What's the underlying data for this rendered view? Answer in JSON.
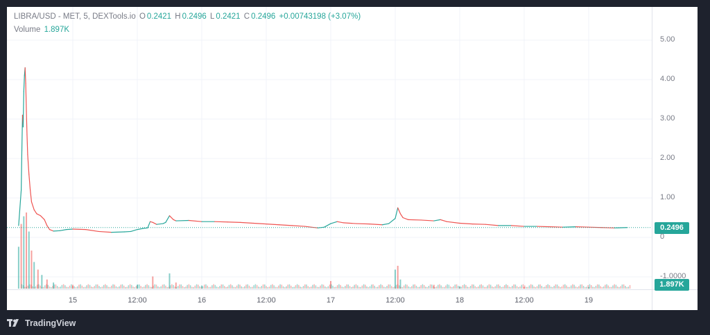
{
  "legend": {
    "symbol": "LIBRA/USD - MET, 5, DEXTools.io",
    "o_label": "O",
    "o_value": "0.2421",
    "h_label": "H",
    "h_value": "0.2496",
    "l_label": "L",
    "l_value": "0.2421",
    "c_label": "C",
    "c_value": "0.2496",
    "change": "+0.00743198 (+3.07%)",
    "volume_label": "Volume",
    "volume_value": "1.897K"
  },
  "badges": {
    "price": "0.2496",
    "volume": "1.897K"
  },
  "footer": {
    "brand": "TradingView",
    "logo_icon": "tradingview-logo-icon"
  },
  "colors": {
    "up": "#26a69a",
    "down": "#ef5350",
    "grid": "#f0f3fa",
    "axis_text": "#787b86"
  },
  "chart_data": {
    "type": "line",
    "ylim": [
      -1.2,
      5.6
    ],
    "y_ticks": [
      {
        "value": 5,
        "label": "5.00"
      },
      {
        "value": 4,
        "label": "4.00"
      },
      {
        "value": 3,
        "label": "3.00"
      },
      {
        "value": 2,
        "label": "2.00"
      },
      {
        "value": 1,
        "label": "1.00"
      },
      {
        "value": 0,
        "label": "0"
      },
      {
        "value": -1,
        "label": "-1.0000"
      }
    ],
    "x_ticks": [
      "15",
      "12:00",
      "16",
      "12:00",
      "17",
      "12:00",
      "18",
      "12:00",
      "19"
    ],
    "x_tick_times": [
      1.0,
      1.5,
      2.0,
      2.5,
      3.0,
      3.5,
      4.0,
      4.5,
      5.0
    ],
    "price_series": {
      "name": "LIBRA/USD",
      "points": [
        [
          0.58,
          0.3
        ],
        [
          0.6,
          1.2
        ],
        [
          0.605,
          2.2
        ],
        [
          0.61,
          3.1
        ],
        [
          0.615,
          2.8
        ],
        [
          0.62,
          3.7
        ],
        [
          0.625,
          4.1
        ],
        [
          0.63,
          4.3
        ],
        [
          0.635,
          3.9
        ],
        [
          0.64,
          3.2
        ],
        [
          0.645,
          2.6
        ],
        [
          0.65,
          2.1
        ],
        [
          0.66,
          1.6
        ],
        [
          0.67,
          1.2
        ],
        [
          0.68,
          0.9
        ],
        [
          0.7,
          0.7
        ],
        [
          0.72,
          0.6
        ],
        [
          0.75,
          0.55
        ],
        [
          0.78,
          0.45
        ],
        [
          0.8,
          0.3
        ],
        [
          0.82,
          0.2
        ],
        [
          0.85,
          0.16
        ],
        [
          0.9,
          0.17
        ],
        [
          0.95,
          0.2
        ],
        [
          1.0,
          0.21
        ],
        [
          1.1,
          0.2
        ],
        [
          1.2,
          0.15
        ],
        [
          1.3,
          0.13
        ],
        [
          1.4,
          0.14
        ],
        [
          1.45,
          0.15
        ],
        [
          1.5,
          0.2
        ],
        [
          1.55,
          0.23
        ],
        [
          1.58,
          0.24
        ],
        [
          1.6,
          0.4
        ],
        [
          1.62,
          0.38
        ],
        [
          1.65,
          0.33
        ],
        [
          1.7,
          0.35
        ],
        [
          1.72,
          0.38
        ],
        [
          1.75,
          0.55
        ],
        [
          1.78,
          0.45
        ],
        [
          1.8,
          0.42
        ],
        [
          1.9,
          0.43
        ],
        [
          2.0,
          0.4
        ],
        [
          2.1,
          0.4
        ],
        [
          2.2,
          0.39
        ],
        [
          2.3,
          0.38
        ],
        [
          2.4,
          0.36
        ],
        [
          2.5,
          0.34
        ],
        [
          2.6,
          0.32
        ],
        [
          2.7,
          0.3
        ],
        [
          2.8,
          0.28
        ],
        [
          2.9,
          0.24
        ],
        [
          2.95,
          0.26
        ],
        [
          3.0,
          0.35
        ],
        [
          3.05,
          0.4
        ],
        [
          3.1,
          0.37
        ],
        [
          3.2,
          0.35
        ],
        [
          3.3,
          0.34
        ],
        [
          3.4,
          0.32
        ],
        [
          3.45,
          0.35
        ],
        [
          3.5,
          0.48
        ],
        [
          3.52,
          0.75
        ],
        [
          3.54,
          0.6
        ],
        [
          3.56,
          0.5
        ],
        [
          3.6,
          0.45
        ],
        [
          3.7,
          0.44
        ],
        [
          3.8,
          0.42
        ],
        [
          3.85,
          0.45
        ],
        [
          3.9,
          0.4
        ],
        [
          4.0,
          0.36
        ],
        [
          4.1,
          0.34
        ],
        [
          4.2,
          0.33
        ],
        [
          4.3,
          0.3
        ],
        [
          4.4,
          0.3
        ],
        [
          4.5,
          0.28
        ],
        [
          4.6,
          0.28
        ],
        [
          4.7,
          0.27
        ],
        [
          4.8,
          0.26
        ],
        [
          4.9,
          0.27
        ],
        [
          5.0,
          0.26
        ],
        [
          5.1,
          0.25
        ],
        [
          5.2,
          0.24
        ],
        [
          5.3,
          0.2496
        ]
      ]
    },
    "volume_series": {
      "name": "Volume",
      "note": "relative heights",
      "spikes": [
        [
          0.58,
          0.55
        ],
        [
          0.6,
          0.85
        ],
        [
          0.62,
          0.95
        ],
        [
          0.64,
          1.0
        ],
        [
          0.66,
          0.75
        ],
        [
          0.68,
          0.5
        ],
        [
          0.7,
          0.35
        ],
        [
          0.73,
          0.25
        ],
        [
          0.76,
          0.18
        ],
        [
          0.8,
          0.12
        ],
        [
          0.85,
          0.08
        ],
        [
          1.0,
          0.04
        ],
        [
          1.5,
          0.05
        ],
        [
          1.62,
          0.16
        ],
        [
          1.75,
          0.2
        ],
        [
          1.8,
          0.08
        ],
        [
          2.0,
          0.04
        ],
        [
          3.0,
          0.1
        ],
        [
          3.5,
          0.25
        ],
        [
          3.52,
          0.3
        ],
        [
          3.54,
          0.12
        ],
        [
          3.8,
          0.05
        ],
        [
          4.0,
          0.03
        ],
        [
          4.5,
          0.02
        ],
        [
          5.0,
          0.02
        ]
      ]
    },
    "last_price": 0.2496,
    "grid": true
  }
}
